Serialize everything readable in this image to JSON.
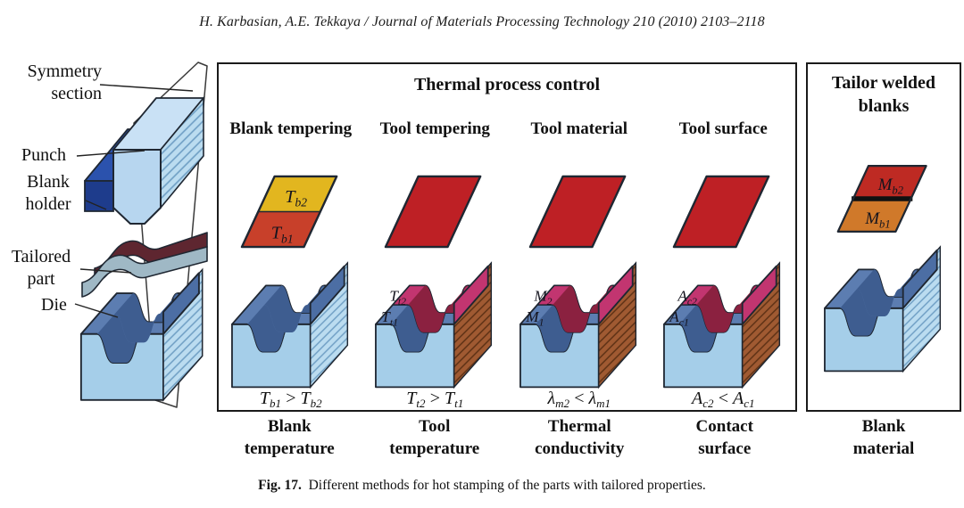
{
  "header": {
    "citation": "H. Karbasian, A.E. Tekkaya / Journal of Materials Processing Technology 210 (2010) 2103–2118"
  },
  "palette": {
    "outline": "#1f2732",
    "red": "#BE2025",
    "yellow": "#E2B61F",
    "orange_red": "#C8402A",
    "orange": "#D0792A",
    "weld": "#111111",
    "pink": "#C23570",
    "dark_red": "#8B2140",
    "steel": "#5C7DB1",
    "steel_dark": "#3E5D90",
    "wall": "#4C6EA4",
    "front_blue": "#A5CEE9",
    "hatch_blue": "#BBDCF0",
    "hatch_blue_line": "#6E9EC4",
    "hatch_brown": "#A05A32",
    "hatch_brown_line": "#5C3014",
    "punch_blue": "#B7D6EF",
    "punch_top": "#C9E1F5",
    "holder_front": "#1E3C8C",
    "holder_top": "#2B52AD",
    "sheet_rear": "#5E2630",
    "sheet_front": "#9FB8C5",
    "plane": "#ffffff"
  },
  "left_diagram": {
    "labels": {
      "symmetry": [
        "Symmetry",
        "section"
      ],
      "punch": [
        "Punch"
      ],
      "blank_holder": [
        "Blank",
        "holder"
      ],
      "tailored_part": [
        "Tailored",
        "part"
      ],
      "die": [
        "Die"
      ]
    }
  },
  "main_panel": {
    "title": "Thermal process control",
    "columns": [
      {
        "header": "Blank tempering",
        "blank": {
          "style": "split",
          "top_color": "#E2B61F",
          "bottom_color": "#C8402A",
          "top_label": [
            "T",
            "b2"
          ],
          "bottom_label": [
            "T",
            "b1"
          ]
        },
        "die": {
          "style": "plain"
        },
        "formula": {
          "left": [
            "T",
            "b1"
          ],
          "op": ">",
          "right": [
            "T",
            "b2"
          ]
        },
        "footer": [
          "Blank",
          "temperature"
        ]
      },
      {
        "header": "Tool tempering",
        "blank": {
          "style": "solid",
          "color": "#BE2025"
        },
        "die": {
          "style": "split",
          "upper_label": [
            "T",
            "t2"
          ],
          "lower_label": [
            "T",
            "t1"
          ]
        },
        "formula": {
          "left": [
            "T",
            "t2"
          ],
          "op": ">",
          "right": [
            "T",
            "t1"
          ]
        },
        "footer": [
          "Tool",
          "temperature"
        ]
      },
      {
        "header": "Tool material",
        "blank": {
          "style": "solid",
          "color": "#BE2025"
        },
        "die": {
          "style": "split",
          "upper_label": [
            "M",
            "2"
          ],
          "lower_label": [
            "M",
            "1"
          ]
        },
        "formula": {
          "left": [
            "λ",
            "m2"
          ],
          "op": "<",
          "right": [
            "λ",
            "m1"
          ]
        },
        "footer": [
          "Thermal",
          "conductivity"
        ]
      },
      {
        "header": "Tool surface",
        "blank": {
          "style": "solid",
          "color": "#BE2025"
        },
        "die": {
          "style": "split",
          "upper_label": [
            "A",
            "c2"
          ],
          "lower_label": [
            "A",
            "c1"
          ]
        },
        "formula": {
          "left": [
            "A",
            "c2"
          ],
          "op": "<",
          "right": [
            "A",
            "c1"
          ]
        },
        "footer": [
          "Contact",
          "surface"
        ]
      }
    ]
  },
  "right_panel": {
    "title": [
      "Tailor welded",
      "blanks"
    ],
    "blank": {
      "style": "welded",
      "top_color": "#BE2A23",
      "bottom_color": "#D0792A",
      "top_label": [
        "M",
        "b2"
      ],
      "bottom_label": [
        "M",
        "b1"
      ]
    },
    "die": {
      "style": "plain"
    },
    "footer": [
      "Blank",
      "material"
    ]
  },
  "caption": {
    "tag": "Fig. 17.",
    "text": "Different methods for hot stamping of the parts with tailored properties."
  }
}
